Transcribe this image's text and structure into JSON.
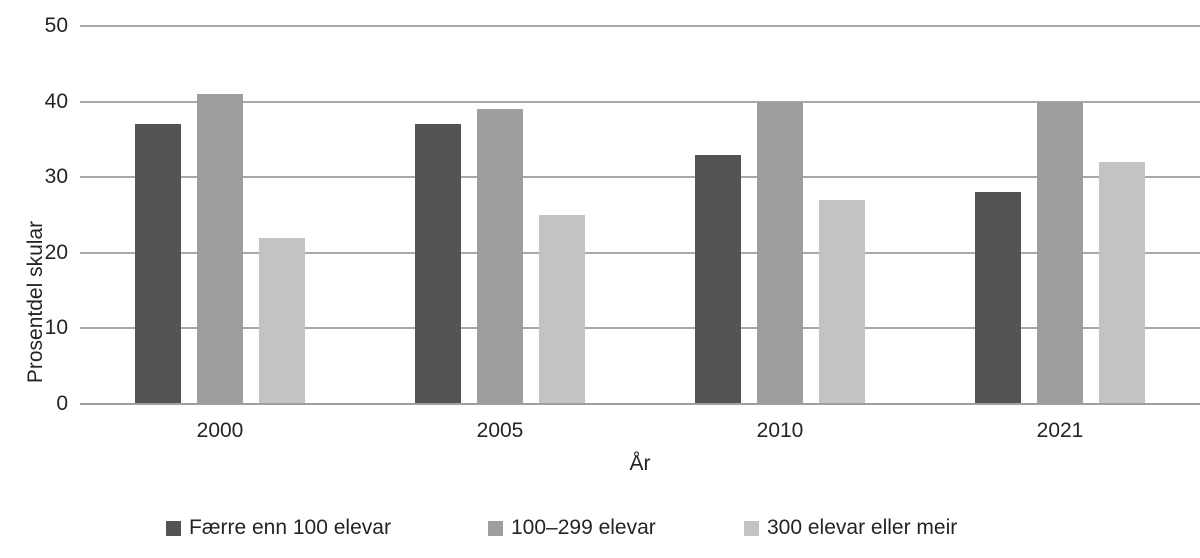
{
  "chart_data": {
    "type": "bar",
    "title": "",
    "xlabel": "År",
    "ylabel": "Prosentdel skular",
    "categories": [
      "2000",
      "2005",
      "2010",
      "2021"
    ],
    "series": [
      {
        "name": "Færre enn 100 elevar",
        "color": "#545454",
        "values": [
          37,
          37,
          33,
          28
        ]
      },
      {
        "name": "100–299 elevar",
        "color": "#9e9e9e",
        "values": [
          41,
          39,
          40,
          40
        ]
      },
      {
        "name": "300 elevar eller meir",
        "color": "#c3c3c3",
        "values": [
          22,
          25,
          27,
          32
        ]
      }
    ],
    "ylim": [
      0,
      50
    ],
    "yticks": [
      0,
      10,
      20,
      30,
      40,
      50
    ],
    "grid": "horizontal",
    "legend_position": "bottom",
    "colors": {
      "gridline": "#a9a9a9",
      "baseline": "#9f9f9f",
      "text": "#262324"
    }
  }
}
